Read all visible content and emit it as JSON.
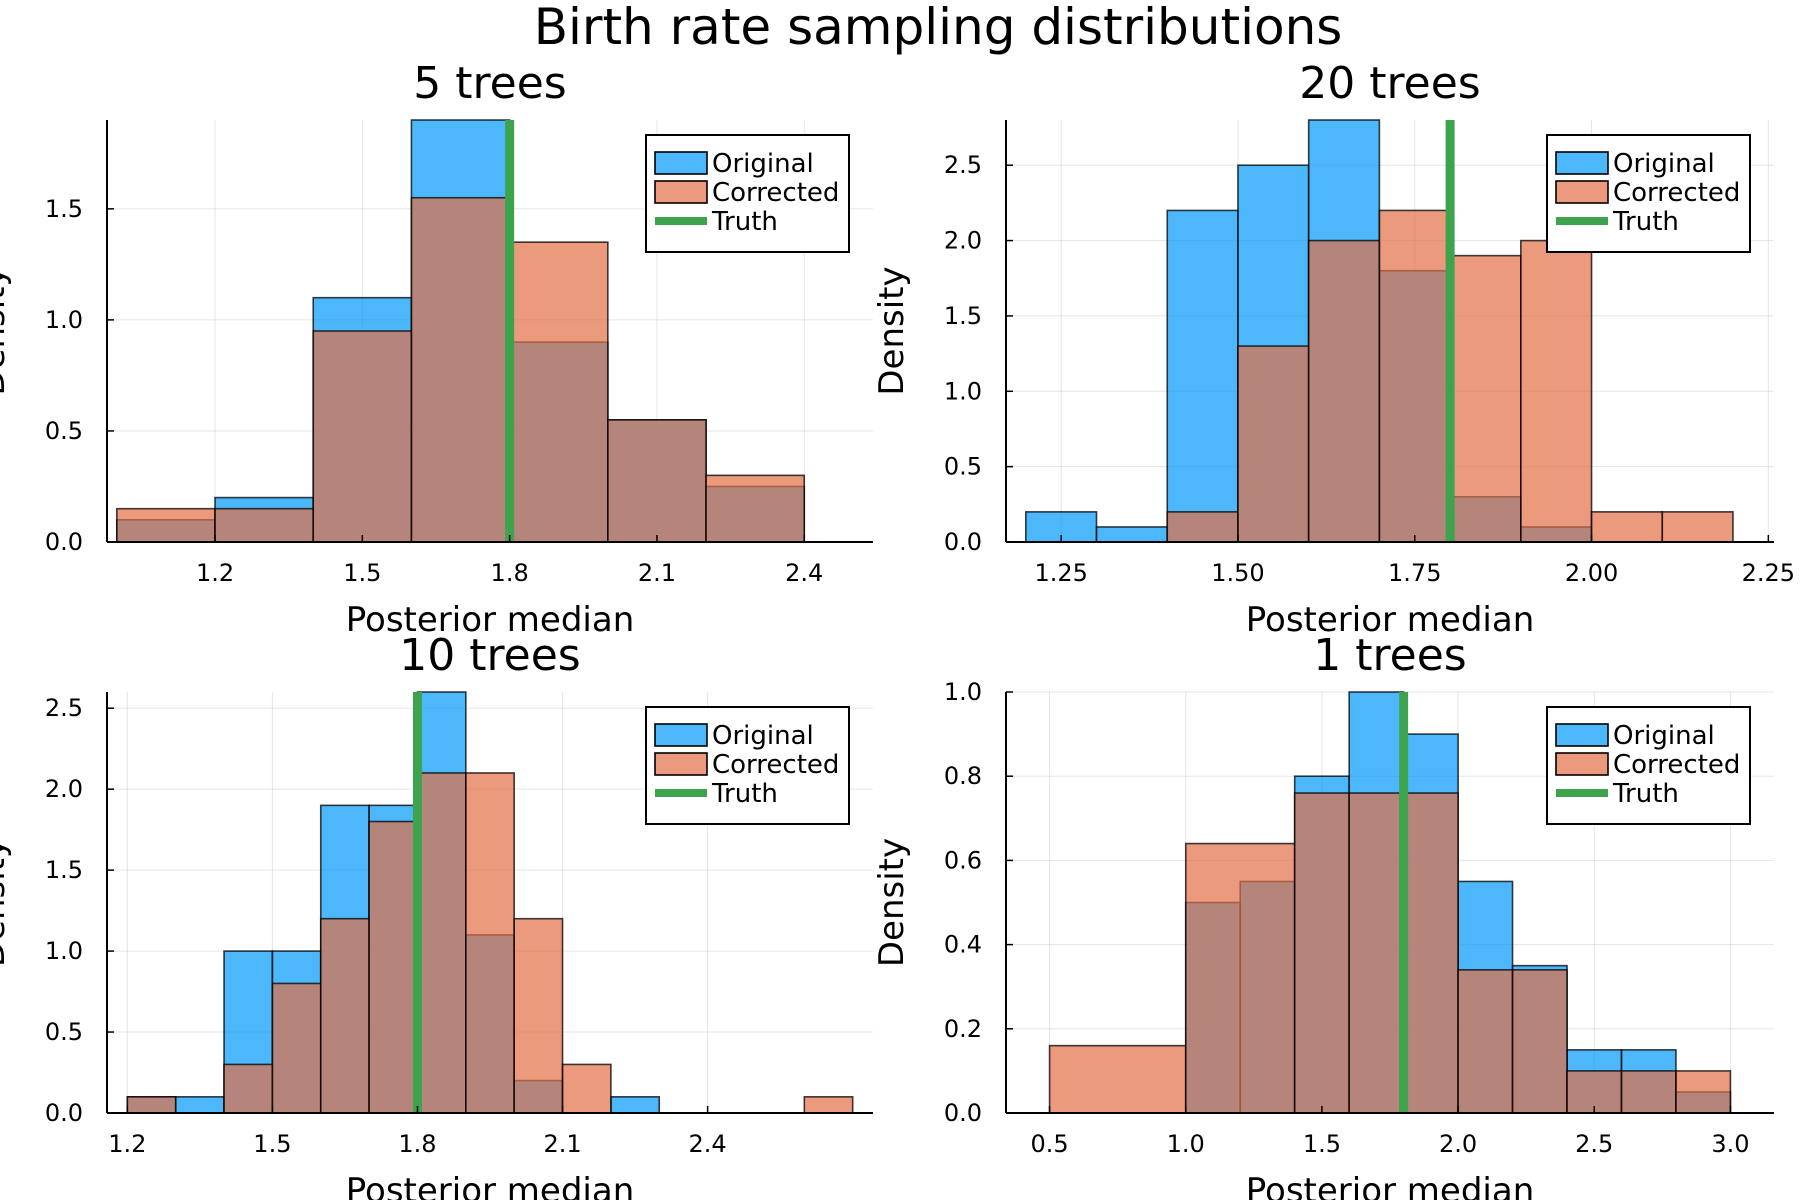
{
  "suptitle": "Birth rate sampling distributions",
  "colors": {
    "original": "#009af9",
    "corrected": "#e26f46",
    "truth": "#3da44d",
    "overlap": "#ad7f78"
  },
  "chart_data": [
    {
      "type": "histogram",
      "title": "5 trees",
      "xlabel": "Posterior median",
      "ylabel": "Density",
      "xlim": [
        0.98,
        2.54
      ],
      "ylim": [
        0,
        1.9
      ],
      "xticks": [
        1.2,
        1.5,
        1.8,
        2.1,
        2.4
      ],
      "xtick_labels": [
        "1.2",
        "1.5",
        "1.8",
        "2.1",
        "2.4"
      ],
      "yticks": [
        0,
        0.5,
        1.0,
        1.5
      ],
      "ytick_labels": [
        "0.0",
        "0.5",
        "1.0",
        "1.5"
      ],
      "truth": 1.8,
      "legend": [
        "Original",
        "Corrected",
        "Truth"
      ],
      "legend_position": "top-right",
      "grid": true,
      "series": [
        {
          "name": "Original",
          "bins": [
            [
              1.0,
              1.2,
              0.1
            ],
            [
              1.2,
              1.4,
              0.2
            ],
            [
              1.4,
              1.6,
              1.1
            ],
            [
              1.6,
              1.8,
              1.9
            ],
            [
              1.8,
              2.0,
              0.9
            ],
            [
              2.0,
              2.2,
              0.55
            ],
            [
              2.2,
              2.4,
              0.25
            ]
          ]
        },
        {
          "name": "Corrected",
          "bins": [
            [
              1.0,
              1.2,
              0.15
            ],
            [
              1.2,
              1.4,
              0.15
            ],
            [
              1.4,
              1.6,
              0.95
            ],
            [
              1.6,
              1.8,
              1.55
            ],
            [
              1.8,
              2.0,
              1.35
            ],
            [
              2.0,
              2.2,
              0.55
            ],
            [
              2.2,
              2.4,
              0.3
            ]
          ]
        }
      ]
    },
    {
      "type": "histogram",
      "title": "20 trees",
      "xlabel": "Posterior median",
      "ylabel": "Density",
      "xlim": [
        1.172,
        2.258
      ],
      "ylim": [
        0,
        2.8
      ],
      "xticks": [
        1.25,
        1.5,
        1.75,
        2.0,
        2.25
      ],
      "xtick_labels": [
        "1.25",
        "1.50",
        "1.75",
        "2.00",
        "2.25"
      ],
      "yticks": [
        0,
        0.5,
        1.0,
        1.5,
        2.0,
        2.5
      ],
      "ytick_labels": [
        "0.0",
        "0.5",
        "1.0",
        "1.5",
        "2.0",
        "2.5"
      ],
      "truth": 1.8,
      "legend": [
        "Original",
        "Corrected",
        "Truth"
      ],
      "legend_position": "top-right",
      "grid": true,
      "series": [
        {
          "name": "Original",
          "bins": [
            [
              1.2,
              1.3,
              0.2
            ],
            [
              1.3,
              1.4,
              0.1
            ],
            [
              1.4,
              1.5,
              2.2
            ],
            [
              1.5,
              1.6,
              2.5
            ],
            [
              1.6,
              1.7,
              2.8
            ],
            [
              1.7,
              1.8,
              1.8
            ],
            [
              1.8,
              1.9,
              0.3
            ],
            [
              1.9,
              2.0,
              0.1
            ]
          ]
        },
        {
          "name": "Corrected",
          "bins": [
            [
              1.4,
              1.5,
              0.2
            ],
            [
              1.5,
              1.6,
              1.3
            ],
            [
              1.6,
              1.7,
              2.0
            ],
            [
              1.7,
              1.8,
              2.2
            ],
            [
              1.8,
              1.9,
              1.9
            ],
            [
              1.9,
              2.0,
              2.0
            ],
            [
              2.0,
              2.1,
              0.2
            ],
            [
              2.1,
              2.2,
              0.2
            ]
          ]
        }
      ]
    },
    {
      "type": "histogram",
      "title": "10 trees",
      "xlabel": "Posterior median",
      "ylabel": "Density",
      "xlim": [
        1.158,
        2.742
      ],
      "ylim": [
        0,
        2.6
      ],
      "xticks": [
        1.2,
        1.5,
        1.8,
        2.1,
        2.4
      ],
      "xtick_labels": [
        "1.2",
        "1.5",
        "1.8",
        "2.1",
        "2.4"
      ],
      "yticks": [
        0,
        0.5,
        1.0,
        1.5,
        2.0,
        2.5
      ],
      "ytick_labels": [
        "0.0",
        "0.5",
        "1.0",
        "1.5",
        "2.0",
        "2.5"
      ],
      "truth": 1.8,
      "legend": [
        "Original",
        "Corrected",
        "Truth"
      ],
      "legend_position": "top-right",
      "grid": true,
      "series": [
        {
          "name": "Original",
          "bins": [
            [
              1.2,
              1.3,
              0.1
            ],
            [
              1.3,
              1.4,
              0.1
            ],
            [
              1.4,
              1.5,
              1.0
            ],
            [
              1.5,
              1.6,
              1.0
            ],
            [
              1.6,
              1.7,
              1.9
            ],
            [
              1.7,
              1.8,
              1.9
            ],
            [
              1.8,
              1.9,
              2.6
            ],
            [
              1.9,
              2.0,
              1.1
            ],
            [
              2.0,
              2.1,
              0.2
            ],
            [
              2.2,
              2.3,
              0.1
            ]
          ]
        },
        {
          "name": "Corrected",
          "bins": [
            [
              1.2,
              1.3,
              0.1
            ],
            [
              1.4,
              1.5,
              0.3
            ],
            [
              1.5,
              1.6,
              0.8
            ],
            [
              1.6,
              1.7,
              1.2
            ],
            [
              1.7,
              1.8,
              1.8
            ],
            [
              1.8,
              1.9,
              2.1
            ],
            [
              1.9,
              2.0,
              2.1
            ],
            [
              2.0,
              2.1,
              1.2
            ],
            [
              2.1,
              2.2,
              0.3
            ],
            [
              2.6,
              2.7,
              0.1
            ]
          ]
        }
      ]
    },
    {
      "type": "histogram",
      "title": "1 trees",
      "xlabel": "Posterior median",
      "ylabel": "Density",
      "xlim": [
        0.34,
        3.16
      ],
      "ylim": [
        0,
        1.0
      ],
      "xticks": [
        0.5,
        1.0,
        1.5,
        2.0,
        2.5,
        3.0
      ],
      "xtick_labels": [
        "0.5",
        "1.0",
        "1.5",
        "2.0",
        "2.5",
        "3.0"
      ],
      "yticks": [
        0,
        0.2,
        0.4,
        0.6,
        0.8,
        1.0
      ],
      "ytick_labels": [
        "0.0",
        "0.2",
        "0.4",
        "0.6",
        "0.8",
        "1.0"
      ],
      "truth": 1.8,
      "legend": [
        "Original",
        "Corrected",
        "Truth"
      ],
      "legend_position": "top-right",
      "grid": true,
      "series": [
        {
          "name": "Original",
          "bins": [
            [
              1.0,
              1.2,
              0.5
            ],
            [
              1.2,
              1.4,
              0.55
            ],
            [
              1.4,
              1.6,
              0.8
            ],
            [
              1.6,
              1.8,
              1.0
            ],
            [
              1.8,
              2.0,
              0.9
            ],
            [
              2.0,
              2.2,
              0.55
            ],
            [
              2.2,
              2.4,
              0.35
            ],
            [
              2.4,
              2.6,
              0.15
            ],
            [
              2.6,
              2.8,
              0.15
            ],
            [
              2.8,
              3.0,
              0.05
            ]
          ]
        },
        {
          "name": "Corrected",
          "bins": [
            [
              0.5,
              1.0,
              0.16
            ],
            [
              1.0,
              1.4,
              0.64
            ],
            [
              1.4,
              1.6,
              0.76
            ],
            [
              1.6,
              1.8,
              0.76
            ],
            [
              1.8,
              2.0,
              0.76
            ],
            [
              2.0,
              2.2,
              0.34
            ],
            [
              2.2,
              2.4,
              0.34
            ],
            [
              2.4,
              2.6,
              0.1
            ],
            [
              2.6,
              2.8,
              0.1
            ],
            [
              2.8,
              3.0,
              0.1
            ]
          ]
        }
      ]
    }
  ]
}
